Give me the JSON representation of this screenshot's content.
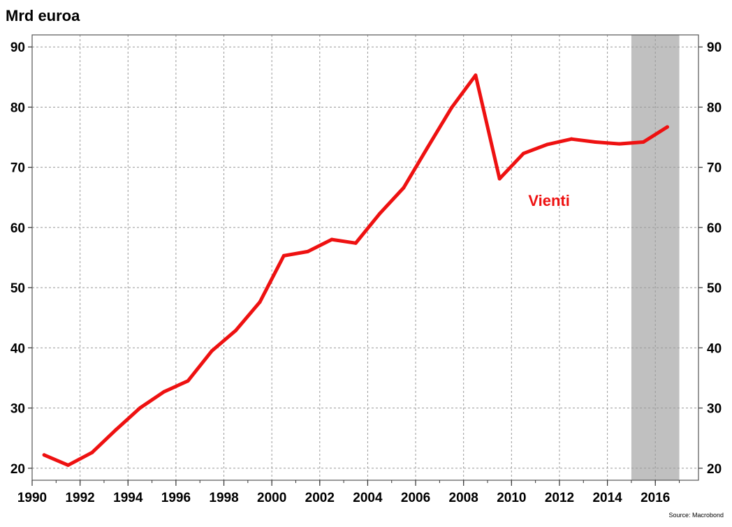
{
  "chart_data": {
    "type": "line",
    "unit_label": "Mrd euroa",
    "source": "Source: Macrobond",
    "series_label": "Vienti",
    "colors": {
      "line": "#ee1111",
      "shade": "#c0c0c0",
      "grid": "#999999"
    },
    "x_range": [
      1990,
      2017.8
    ],
    "y_range": [
      18,
      92
    ],
    "y_ticks": [
      20,
      30,
      40,
      50,
      60,
      70,
      80,
      90
    ],
    "x_ticks": [
      1990,
      1992,
      1994,
      1996,
      1998,
      2000,
      2002,
      2004,
      2006,
      2008,
      2010,
      2012,
      2014,
      2016
    ],
    "shaded_range": [
      2015,
      2017
    ],
    "grid": true,
    "series": [
      {
        "x": [
          1990.5,
          1991.5,
          1992.5,
          1993.5,
          1994.5,
          1995.5,
          1996.5,
          1997.5,
          1998.5,
          1999.5,
          2000.5,
          2001.5,
          2002.5,
          2003.5,
          2004.5,
          2005.5,
          2006.5,
          2007.5,
          2008.5,
          2009.5,
          2010.5,
          2011.5,
          2012.5,
          2013.5,
          2014.5,
          2015.5,
          2016.5
        ],
        "values": [
          22.2,
          20.5,
          22.6,
          26.4,
          30.0,
          32.7,
          34.5,
          39.5,
          42.9,
          47.6,
          55.3,
          56.0,
          58.0,
          57.4,
          62.3,
          66.6,
          73.3,
          79.9,
          85.3,
          68.1,
          72.3,
          73.8,
          74.7,
          74.2,
          73.9,
          74.2,
          76.7
        ]
      }
    ]
  }
}
